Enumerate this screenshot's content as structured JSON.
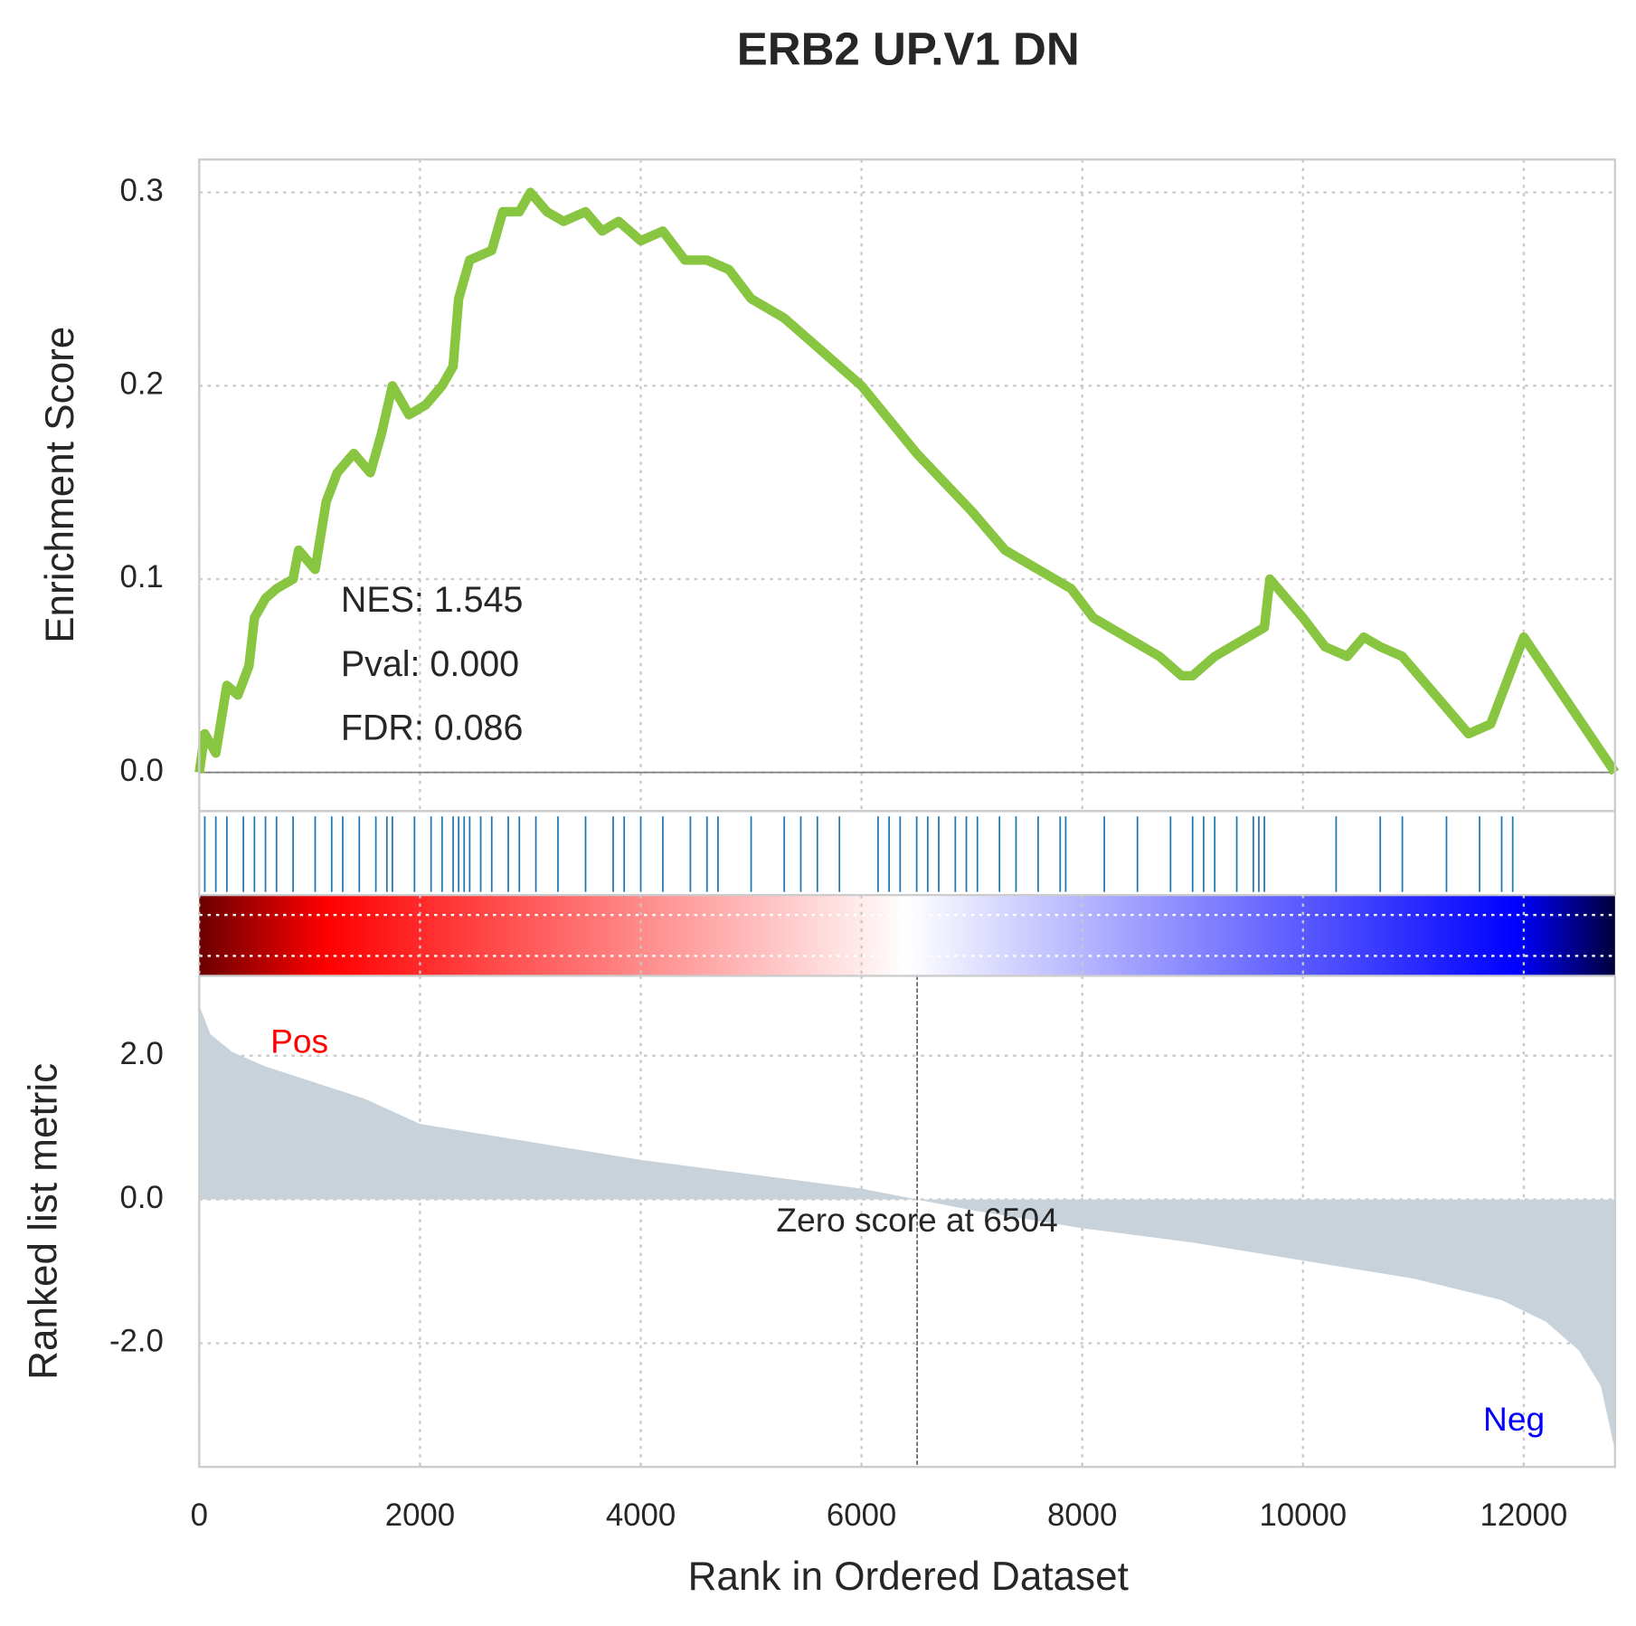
{
  "chart_data": [
    {
      "type": "line",
      "title": "ERB2 UP.V1 DN",
      "ylabel": "Enrichment Score",
      "x": [
        0,
        50,
        150,
        250,
        350,
        450,
        500,
        600,
        700,
        850,
        900,
        1050,
        1150,
        1250,
        1400,
        1550,
        1650,
        1750,
        1900,
        2050,
        2200,
        2300,
        2350,
        2450,
        2650,
        2750,
        2900,
        3000,
        3150,
        3300,
        3500,
        3650,
        3800,
        4000,
        4200,
        4400,
        4600,
        4800,
        5000,
        5300,
        5600,
        6000,
        6500,
        7000,
        7300,
        7600,
        7900,
        8100,
        8400,
        8700,
        8900,
        9000,
        9200,
        9500,
        9650,
        9700,
        10000,
        10200,
        10400,
        10550,
        10700,
        10900,
        11200,
        11500,
        11700,
        11800,
        12000,
        12827
      ],
      "series": [
        {
          "color": "#88c540",
          "values": [
            0,
            0.02,
            0.01,
            0.045,
            0.04,
            0.055,
            0.08,
            0.09,
            0.095,
            0.1,
            0.115,
            0.105,
            0.14,
            0.155,
            0.165,
            0.155,
            0.175,
            0.2,
            0.185,
            0.19,
            0.2,
            0.21,
            0.245,
            0.265,
            0.27,
            0.29,
            0.29,
            0.3,
            0.29,
            0.285,
            0.29,
            0.28,
            0.285,
            0.275,
            0.28,
            0.265,
            0.265,
            0.26,
            0.245,
            0.235,
            0.22,
            0.2,
            0.165,
            0.135,
            0.115,
            0.105,
            0.095,
            0.08,
            0.07,
            0.06,
            0.05,
            0.05,
            0.06,
            0.07,
            0.075,
            0.1,
            0.08,
            0.065,
            0.06,
            0.07,
            0.065,
            0.06,
            0.04,
            0.02,
            0.025,
            0.04,
            0.07,
            0
          ]
        }
      ],
      "ylim": [
        -0.02,
        0.317
      ],
      "yticks": [
        {
          "value": 0,
          "label": "0.0"
        },
        0.1,
        0.2,
        0.3
      ],
      "grid": true,
      "annotations": [
        "NES: 1.545",
        "Pval: 0.000",
        "FDR: 0.086"
      ]
    },
    {
      "type": "rug",
      "color": "#1f77b4",
      "x": [
        50,
        150,
        250,
        400,
        500,
        600,
        700,
        850,
        1050,
        1200,
        1300,
        1450,
        1600,
        1700,
        1750,
        1950,
        2100,
        2200,
        2300,
        2350,
        2400,
        2450,
        2550,
        2650,
        2800,
        2900,
        3050,
        3250,
        3500,
        3750,
        3850,
        4000,
        4200,
        4450,
        4600,
        4700,
        5000,
        5300,
        5450,
        5600,
        5800,
        6150,
        6250,
        6350,
        6500,
        6600,
        6700,
        6850,
        6950,
        7050,
        7250,
        7400,
        7600,
        7800,
        7850,
        8200,
        8500,
        8800,
        9000,
        9100,
        9200,
        9400,
        9550,
        9600,
        9650,
        10300,
        10700,
        10900,
        11300,
        11600,
        11800,
        11900
      ]
    },
    {
      "type": "area",
      "ylabel": "Ranked list metric",
      "xlabel": "Rank in Ordered Dataset",
      "color": "#c8d2da",
      "x": [
        0,
        100,
        300,
        600,
        1000,
        1500,
        2000,
        3000,
        4000,
        5000,
        6000,
        6504,
        7000,
        8000,
        9000,
        10000,
        11000,
        11800,
        12200,
        12500,
        12700,
        12827
      ],
      "values": [
        2.7,
        2.3,
        2.05,
        1.85,
        1.65,
        1.4,
        1.05,
        0.8,
        0.55,
        0.35,
        0.15,
        0,
        -0.15,
        -0.4,
        -0.6,
        -0.85,
        -1.1,
        -1.4,
        -1.7,
        -2.1,
        -2.6,
        -3.5
      ],
      "xlim": [
        0,
        12827
      ],
      "xticks": [
        0,
        2000,
        4000,
        6000,
        8000,
        10000,
        12000
      ],
      "ylim": [
        -3.72,
        3.11
      ],
      "yticks": [
        {
          "value": -2,
          "label": "-2.0"
        },
        {
          "value": 0,
          "label": "0.0"
        },
        {
          "value": 2,
          "label": "2.0"
        }
      ],
      "grid": true,
      "pos_label": "Pos",
      "neg_label": "Neg",
      "zero_score_rank": 6504,
      "zero_label": "Zero score at 6504"
    }
  ]
}
